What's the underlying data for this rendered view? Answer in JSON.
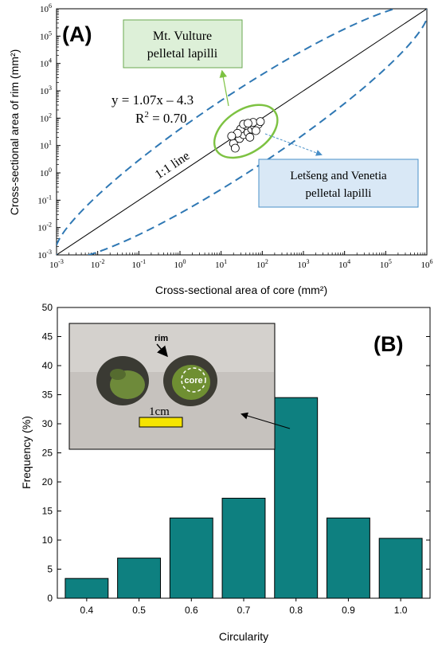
{
  "chart_data": [
    {
      "type": "scatter",
      "panel_label": "(A)",
      "xlabel": "Cross-sectional area of core (mm²)",
      "ylabel": "Cross-sectional area of rim (mm²)",
      "log_scale": true,
      "xlim": [
        0.001,
        1000000
      ],
      "ylim": [
        0.001,
        1000000
      ],
      "tick_exponents": [
        -3,
        -2,
        -1,
        0,
        1,
        2,
        3,
        4,
        5,
        6
      ],
      "points": [
        {
          "x": 20,
          "y": 12
        },
        {
          "x": 28,
          "y": 18
        },
        {
          "x": 35,
          "y": 25
        },
        {
          "x": 45,
          "y": 30
        },
        {
          "x": 55,
          "y": 40
        },
        {
          "x": 65,
          "y": 50
        },
        {
          "x": 80,
          "y": 60
        },
        {
          "x": 30,
          "y": 40
        },
        {
          "x": 40,
          "y": 55
        },
        {
          "x": 60,
          "y": 70
        },
        {
          "x": 25,
          "y": 28
        },
        {
          "x": 50,
          "y": 20
        },
        {
          "x": 70,
          "y": 35
        },
        {
          "x": 18,
          "y": 22
        },
        {
          "x": 90,
          "y": 75
        },
        {
          "x": 35,
          "y": 60
        },
        {
          "x": 22,
          "y": 8
        },
        {
          "x": 45,
          "y": 65
        }
      ],
      "one_to_one_label": "1:1 line",
      "regression": {
        "slope": 1.07,
        "intercept": -4.3,
        "r2": 0.7,
        "equation": "y = 1.07x – 4.3",
        "r2_prefix": "R",
        "r2_sup": "2",
        "r2_rest": " = 0.70"
      },
      "callouts": {
        "vulture": {
          "line1": "Mt. Vulture",
          "line2": "pelletal lapilli",
          "color": "#ddf0d8",
          "border": "#6aa84f"
        },
        "letseng": {
          "line1": "Letšeng and Venetia",
          "line2": "pelletal lapilli",
          "color": "#d9e8f6",
          "border": "#4a90c8"
        }
      },
      "colors": {
        "ellipse_green": "#7dc242",
        "ellipse_blue_dashed": "#2f78b4"
      }
    },
    {
      "type": "bar",
      "panel_label": "(B)",
      "xlabel": "Circularity",
      "ylabel": "Frequency (%)",
      "categories": [
        "0.4",
        "0.5",
        "0.6",
        "0.7",
        "0.8",
        "0.9",
        "1.0"
      ],
      "values": [
        3.4,
        6.9,
        13.8,
        17.2,
        34.5,
        13.8,
        10.3
      ],
      "ylim": [
        0,
        50
      ],
      "yticks": [
        "0",
        "5",
        "10",
        "15",
        "20",
        "25",
        "30",
        "35",
        "40",
        "45",
        "50"
      ],
      "bar_color": "#0e8080",
      "inset": {
        "rim_label": "rim",
        "core_label": "core",
        "scale_label": "1cm"
      }
    }
  ]
}
